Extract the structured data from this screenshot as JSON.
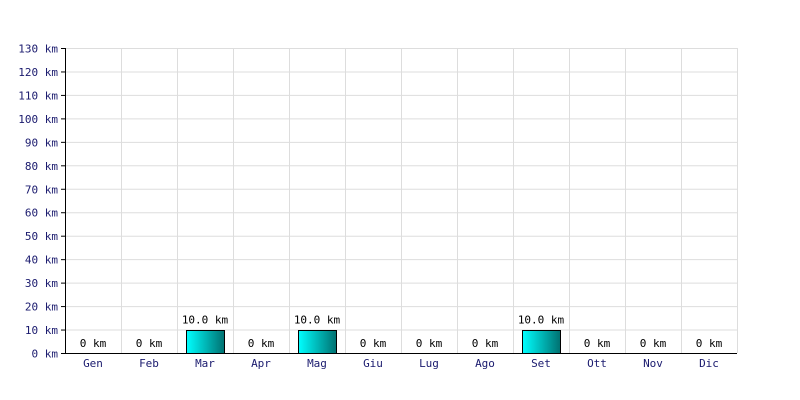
{
  "chart_data": {
    "type": "bar",
    "categories": [
      "Gen",
      "Feb",
      "Mar",
      "Apr",
      "Mag",
      "Giu",
      "Lug",
      "Ago",
      "Set",
      "Ott",
      "Nov",
      "Dic"
    ],
    "values": [
      0,
      0,
      10,
      0,
      10,
      0,
      0,
      0,
      10,
      0,
      0,
      0
    ],
    "data_labels": [
      "0 km",
      "0 km",
      "10.0 km",
      "0 km",
      "10.0 km",
      "0 km",
      "0 km",
      "0 km",
      "10.0 km",
      "0 km",
      "0 km",
      "0 km"
    ],
    "y_ticks": [
      0,
      10,
      20,
      30,
      40,
      50,
      60,
      70,
      80,
      90,
      100,
      110,
      120,
      130
    ],
    "y_tick_labels": [
      "0 km",
      "10 km",
      "20 km",
      "30 km",
      "40 km",
      "50 km",
      "60 km",
      "70 km",
      "80 km",
      "90 km",
      "100 km",
      "110 km",
      "120 km",
      "130 km"
    ],
    "ylim": [
      0,
      130
    ],
    "grid": true,
    "title": "",
    "xlabel": "",
    "ylabel": "",
    "colors": {
      "bar_light": "#00ffff",
      "bar_dark": "#007070",
      "grid": "#dddddd",
      "axis": "#000000",
      "tick_text": "#1a1a6e"
    }
  }
}
